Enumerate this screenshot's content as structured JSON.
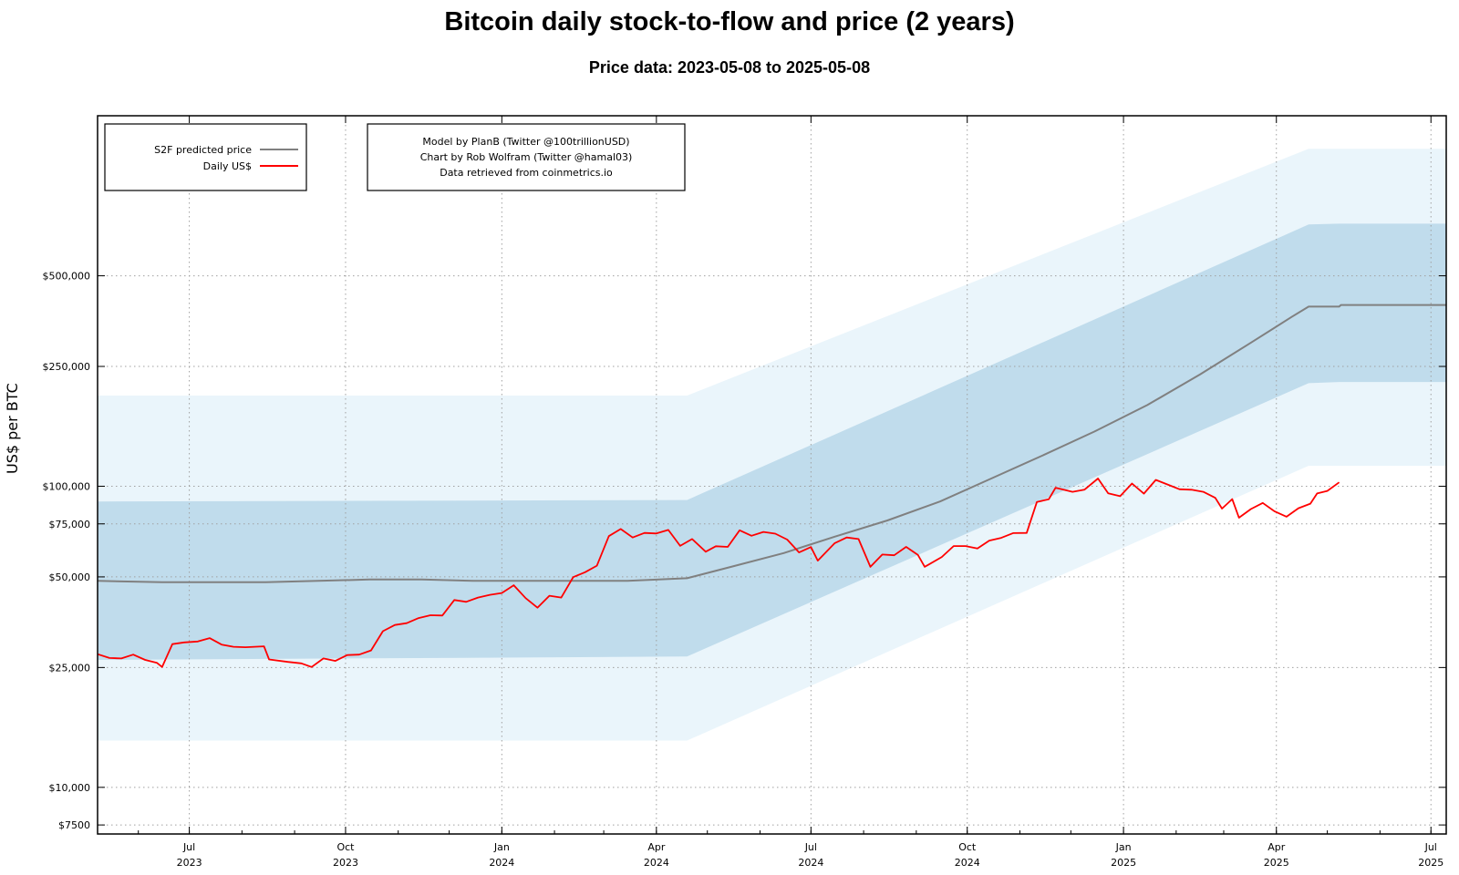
{
  "header": {
    "title": "Bitcoin daily stock-to-flow and price (2 years)",
    "subtitle": "Price data: 2023-05-08 to 2025-05-08"
  },
  "legend": {
    "s2f_label": "S2F predicted price",
    "price_label": "Daily US$"
  },
  "credits": {
    "line1": "Model by PlanB (Twitter @100trillionUSD)",
    "line2": "Chart by Rob Wolfram (Twitter @hamal03)",
    "line3": "Data retrieved from coinmetrics.io"
  },
  "colors": {
    "price": "#ff0000",
    "s2f": "#808080",
    "band_inner": "#c0dcec",
    "band_outer": "#eaf5fb",
    "grid": "#a0a0a0"
  },
  "chart_data": {
    "type": "line",
    "title": "Bitcoin daily stock-to-flow and price (2 years)",
    "subtitle": "Price data: 2023-05-08 to 2025-05-08",
    "ylabel": "US$ per BTC",
    "xlabel": "",
    "yscale": "log",
    "ylim": [
      7000,
      1700000
    ],
    "xlim": [
      "2023-05-08",
      "2025-07-10"
    ],
    "grid": true,
    "legend_position": "top-left",
    "y_ticks": [
      {
        "value": 7500,
        "label": "$7500"
      },
      {
        "value": 10000,
        "label": "$10,000"
      },
      {
        "value": 25000,
        "label": "$25,000"
      },
      {
        "value": 50000,
        "label": "$50,000"
      },
      {
        "value": 75000,
        "label": "$75,000"
      },
      {
        "value": 100000,
        "label": "$100,000"
      },
      {
        "value": 250000,
        "label": "$250,000"
      },
      {
        "value": 500000,
        "label": "$500,000"
      }
    ],
    "x_ticks": [
      {
        "date": "2023-07-01",
        "month": "Jul",
        "year": "2023"
      },
      {
        "date": "2023-10-01",
        "month": "Oct",
        "year": "2023"
      },
      {
        "date": "2024-01-01",
        "month": "Jan",
        "year": "2024"
      },
      {
        "date": "2024-04-01",
        "month": "Apr",
        "year": "2024"
      },
      {
        "date": "2024-07-01",
        "month": "Jul",
        "year": "2024"
      },
      {
        "date": "2024-10-01",
        "month": "Oct",
        "year": "2024"
      },
      {
        "date": "2025-01-01",
        "month": "Jan",
        "year": "2025"
      },
      {
        "date": "2025-04-01",
        "month": "Apr",
        "year": "2025"
      },
      {
        "date": "2025-07-01",
        "month": "Jul",
        "year": "2025"
      }
    ],
    "series": [
      {
        "name": "S2F predicted price",
        "color": "#808080",
        "points": [
          [
            "2023-05-08",
            48500
          ],
          [
            "2023-06-15",
            48000
          ],
          [
            "2023-07-15",
            48000
          ],
          [
            "2023-08-15",
            48000
          ],
          [
            "2023-09-15",
            48500
          ],
          [
            "2023-10-15",
            49000
          ],
          [
            "2023-11-15",
            49000
          ],
          [
            "2023-12-15",
            48500
          ],
          [
            "2024-01-15",
            48500
          ],
          [
            "2024-02-15",
            48500
          ],
          [
            "2024-03-15",
            48500
          ],
          [
            "2024-04-19",
            49500
          ],
          [
            "2024-05-15",
            54000
          ],
          [
            "2024-06-15",
            60000
          ],
          [
            "2024-07-15",
            68000
          ],
          [
            "2024-08-15",
            77000
          ],
          [
            "2024-09-15",
            89000
          ],
          [
            "2024-10-15",
            106000
          ],
          [
            "2024-11-15",
            127000
          ],
          [
            "2024-12-15",
            152000
          ],
          [
            "2025-01-15",
            186000
          ],
          [
            "2025-02-15",
            235000
          ],
          [
            "2025-03-15",
            295000
          ],
          [
            "2025-04-10",
            365000
          ],
          [
            "2025-04-20",
            395000
          ],
          [
            "2025-05-08",
            395000
          ],
          [
            "2025-05-09",
            400000
          ],
          [
            "2025-07-10",
            400000
          ]
        ]
      },
      {
        "name": "Daily US$",
        "color": "#ff0000",
        "points": [
          [
            "2023-05-08",
            27700
          ],
          [
            "2023-05-15",
            26900
          ],
          [
            "2023-05-22",
            26800
          ],
          [
            "2023-05-29",
            27600
          ],
          [
            "2023-06-05",
            26500
          ],
          [
            "2023-06-12",
            25900
          ],
          [
            "2023-06-15",
            25100
          ],
          [
            "2023-06-21",
            29900
          ],
          [
            "2023-06-28",
            30300
          ],
          [
            "2023-07-06",
            30500
          ],
          [
            "2023-07-13",
            31300
          ],
          [
            "2023-07-20",
            29800
          ],
          [
            "2023-07-27",
            29300
          ],
          [
            "2023-08-03",
            29200
          ],
          [
            "2023-08-14",
            29400
          ],
          [
            "2023-08-17",
            26600
          ],
          [
            "2023-08-28",
            26100
          ],
          [
            "2023-09-05",
            25800
          ],
          [
            "2023-09-11",
            25100
          ],
          [
            "2023-09-18",
            26800
          ],
          [
            "2023-09-25",
            26300
          ],
          [
            "2023-10-02",
            27500
          ],
          [
            "2023-10-09",
            27600
          ],
          [
            "2023-10-16",
            28500
          ],
          [
            "2023-10-23",
            33000
          ],
          [
            "2023-10-30",
            34600
          ],
          [
            "2023-11-06",
            35100
          ],
          [
            "2023-11-13",
            36500
          ],
          [
            "2023-11-20",
            37300
          ],
          [
            "2023-11-27",
            37200
          ],
          [
            "2023-12-04",
            41900
          ],
          [
            "2023-12-11",
            41300
          ],
          [
            "2023-12-18",
            42700
          ],
          [
            "2023-12-25",
            43600
          ],
          [
            "2024-01-01",
            44200
          ],
          [
            "2024-01-08",
            46900
          ],
          [
            "2024-01-15",
            42500
          ],
          [
            "2024-01-22",
            39500
          ],
          [
            "2024-01-29",
            43300
          ],
          [
            "2024-02-05",
            42700
          ],
          [
            "2024-02-12",
            49900
          ],
          [
            "2024-02-19",
            51800
          ],
          [
            "2024-02-26",
            54500
          ],
          [
            "2024-03-04",
            68300
          ],
          [
            "2024-03-11",
            72100
          ],
          [
            "2024-03-18",
            67600
          ],
          [
            "2024-03-25",
            70000
          ],
          [
            "2024-04-01",
            69700
          ],
          [
            "2024-04-08",
            71600
          ],
          [
            "2024-04-15",
            63400
          ],
          [
            "2024-04-22",
            66800
          ],
          [
            "2024-04-30",
            60600
          ],
          [
            "2024-05-06",
            63200
          ],
          [
            "2024-05-13",
            62900
          ],
          [
            "2024-05-20",
            71400
          ],
          [
            "2024-05-27",
            68500
          ],
          [
            "2024-06-03",
            70500
          ],
          [
            "2024-06-10",
            69600
          ],
          [
            "2024-06-17",
            66500
          ],
          [
            "2024-06-24",
            60300
          ],
          [
            "2024-07-01",
            62800
          ],
          [
            "2024-07-05",
            56600
          ],
          [
            "2024-07-15",
            64700
          ],
          [
            "2024-07-22",
            67600
          ],
          [
            "2024-07-29",
            66800
          ],
          [
            "2024-08-05",
            54000
          ],
          [
            "2024-08-12",
            59300
          ],
          [
            "2024-08-19",
            59000
          ],
          [
            "2024-08-26",
            62900
          ],
          [
            "2024-09-02",
            59100
          ],
          [
            "2024-09-06",
            54000
          ],
          [
            "2024-09-16",
            58200
          ],
          [
            "2024-09-23",
            63300
          ],
          [
            "2024-09-30",
            63300
          ],
          [
            "2024-10-07",
            62100
          ],
          [
            "2024-10-14",
            66000
          ],
          [
            "2024-10-21",
            67400
          ],
          [
            "2024-10-28",
            69900
          ],
          [
            "2024-11-05",
            70000
          ],
          [
            "2024-11-11",
            88700
          ],
          [
            "2024-11-18",
            90500
          ],
          [
            "2024-11-22",
            98900
          ],
          [
            "2024-12-02",
            95800
          ],
          [
            "2024-12-09",
            97400
          ],
          [
            "2024-12-17",
            106100
          ],
          [
            "2024-12-23",
            94700
          ],
          [
            "2024-12-30",
            92700
          ],
          [
            "2025-01-06",
            102100
          ],
          [
            "2025-01-13",
            94500
          ],
          [
            "2025-01-20",
            105000
          ],
          [
            "2025-01-27",
            101300
          ],
          [
            "2025-02-03",
            97700
          ],
          [
            "2025-02-10",
            97400
          ],
          [
            "2025-02-17",
            95800
          ],
          [
            "2025-02-24",
            91500
          ],
          [
            "2025-02-28",
            84300
          ],
          [
            "2025-03-06",
            90600
          ],
          [
            "2025-03-10",
            78600
          ],
          [
            "2025-03-17",
            84000
          ],
          [
            "2025-03-24",
            88000
          ],
          [
            "2025-03-31",
            82500
          ],
          [
            "2025-04-07",
            79200
          ],
          [
            "2025-04-14",
            84500
          ],
          [
            "2025-04-21",
            87500
          ],
          [
            "2025-04-25",
            94600
          ],
          [
            "2025-05-01",
            96500
          ],
          [
            "2025-05-08",
            103000
          ]
        ]
      }
    ],
    "bands": [
      {
        "name": "outer",
        "points": [
          [
            "2023-05-08",
            14300,
            200000
          ],
          [
            "2024-04-19",
            14300,
            200000
          ],
          [
            "2025-04-20",
            117000,
            1320000
          ],
          [
            "2025-05-08",
            117000,
            1320000
          ],
          [
            "2025-07-10",
            117000,
            1320000
          ]
        ]
      },
      {
        "name": "inner",
        "points": [
          [
            "2023-05-08",
            26500,
            89000
          ],
          [
            "2024-04-19",
            27200,
            90000
          ],
          [
            "2025-04-20",
            220000,
            740000
          ],
          [
            "2025-05-08",
            222000,
            745000
          ],
          [
            "2025-07-10",
            222000,
            745000
          ]
        ]
      }
    ]
  }
}
